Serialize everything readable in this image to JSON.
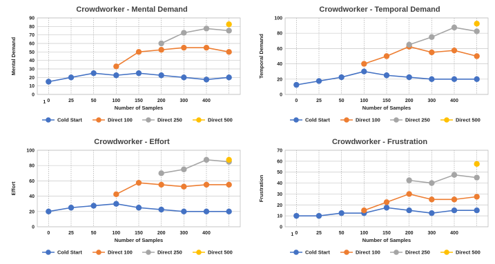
{
  "colors": {
    "cold_start": "#4472C4",
    "direct_100": "#ED7D31",
    "direct_250": "#A5A5A5",
    "direct_500": "#FFC000"
  },
  "chart_data": [
    {
      "type": "line",
      "title": "Crowdworker - Mental Demand",
      "xlabel": "Number of Samples",
      "ylabel": "Mental Demand",
      "categories": [
        "0",
        "25",
        "50",
        "100",
        "150",
        "200",
        "300",
        "400",
        ""
      ],
      "extra_x_label": "1",
      "ylim": [
        0,
        90
      ],
      "yticks": [
        0,
        10,
        20,
        30,
        40,
        50,
        60,
        70,
        80,
        90
      ],
      "grid": true,
      "legend": "bottom",
      "series": [
        {
          "name": "Cold Start",
          "values": [
            15,
            20,
            25,
            22.5,
            25,
            22.5,
            20,
            17.5,
            20
          ]
        },
        {
          "name": "Direct 100",
          "values": [
            null,
            null,
            null,
            33,
            50,
            52.5,
            55,
            55,
            50
          ]
        },
        {
          "name": "Direct 250",
          "values": [
            null,
            null,
            null,
            null,
            null,
            60,
            72.5,
            77.5,
            75
          ]
        },
        {
          "name": "Direct 500",
          "values": [
            null,
            null,
            null,
            null,
            null,
            null,
            null,
            null,
            82.5
          ]
        }
      ]
    },
    {
      "type": "line",
      "title": "Crowdworker -  Temporal Demand",
      "xlabel": "Number of Samples",
      "ylabel": "Temporal Demand",
      "categories": [
        "0",
        "25",
        "50",
        "100",
        "150",
        "200",
        "300",
        "400",
        ""
      ],
      "extra_x_label": "",
      "ylim": [
        0,
        100
      ],
      "yticks": [
        0,
        20,
        40,
        60,
        80,
        100
      ],
      "grid": true,
      "legend": "bottom",
      "series": [
        {
          "name": "Cold Start",
          "values": [
            12.5,
            17.5,
            22.5,
            30,
            25,
            22.5,
            20,
            20,
            20
          ]
        },
        {
          "name": "Direct 100",
          "values": [
            null,
            null,
            null,
            40,
            50,
            62.5,
            55,
            57.5,
            50
          ]
        },
        {
          "name": "Direct 250",
          "values": [
            null,
            null,
            null,
            null,
            null,
            65,
            75,
            87.5,
            82.5
          ]
        },
        {
          "name": "Direct 500",
          "values": [
            null,
            null,
            null,
            null,
            null,
            null,
            null,
            null,
            92.5
          ]
        }
      ]
    },
    {
      "type": "line",
      "title": "Crowdworker - Effort",
      "xlabel": "Number of Samples",
      "ylabel": "Effort",
      "categories": [
        "0",
        "25",
        "50",
        "100",
        "150",
        "200",
        "300",
        "400",
        ""
      ],
      "extra_x_label": "",
      "ylim": [
        0,
        100
      ],
      "yticks": [
        0,
        20,
        40,
        60,
        80,
        100
      ],
      "grid": true,
      "legend": "bottom",
      "series": [
        {
          "name": "Cold Start",
          "values": [
            20,
            25,
            27.5,
            30,
            25,
            22.5,
            20,
            20,
            20
          ]
        },
        {
          "name": "Direct 100",
          "values": [
            null,
            null,
            null,
            42.5,
            57.5,
            55,
            52.5,
            55,
            55
          ]
        },
        {
          "name": "Direct 250",
          "values": [
            null,
            null,
            null,
            null,
            null,
            70,
            75,
            87.5,
            85
          ]
        },
        {
          "name": "Direct 500",
          "values": [
            null,
            null,
            null,
            null,
            null,
            null,
            null,
            null,
            87.5
          ]
        }
      ]
    },
    {
      "type": "line",
      "title": "Crowdworker - Frustration",
      "xlabel": "Number of Samples",
      "ylabel": "Frustration",
      "categories": [
        "0",
        "25",
        "50",
        "100",
        "150",
        "200",
        "300",
        "400",
        ""
      ],
      "extra_x_label": "1",
      "ylim": [
        0,
        70
      ],
      "yticks": [
        0,
        10,
        20,
        30,
        40,
        50,
        60,
        70
      ],
      "grid": true,
      "legend": "bottom",
      "series": [
        {
          "name": "Cold Start",
          "values": [
            10,
            10,
            12.5,
            12.5,
            17.5,
            15,
            12.5,
            15,
            15
          ]
        },
        {
          "name": "Direct 100",
          "values": [
            null,
            null,
            null,
            15,
            22.5,
            30,
            25,
            25,
            27.5
          ]
        },
        {
          "name": "Direct 250",
          "values": [
            null,
            null,
            null,
            null,
            null,
            42.5,
            40,
            47.5,
            45
          ]
        },
        {
          "name": "Direct 500",
          "values": [
            null,
            null,
            null,
            null,
            null,
            null,
            null,
            null,
            57.5
          ]
        }
      ]
    }
  ]
}
